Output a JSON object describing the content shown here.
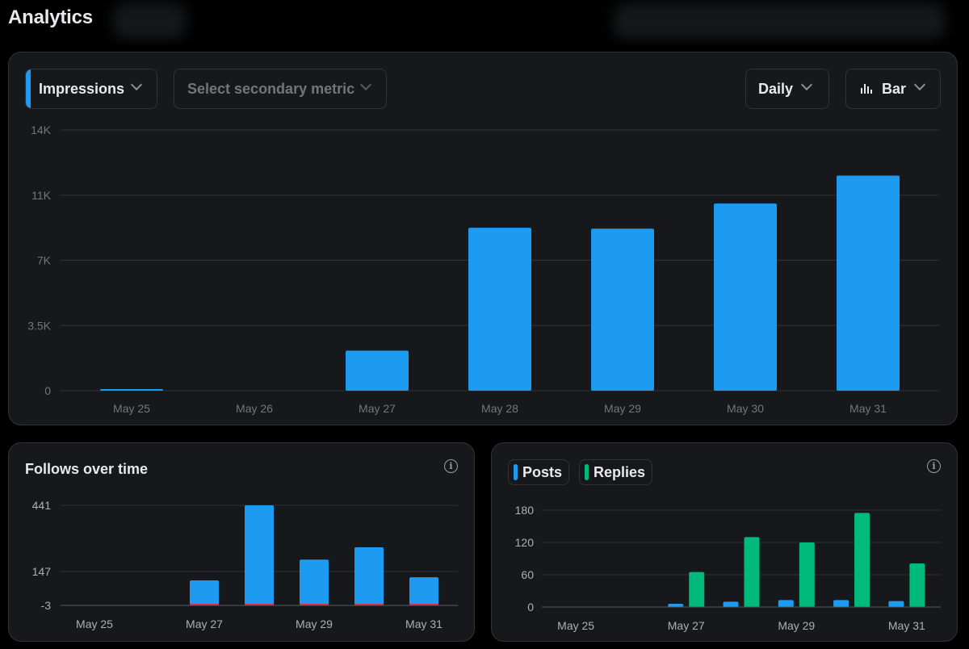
{
  "page": {
    "title": "Analytics"
  },
  "colors": {
    "accent": "#1d9bf0",
    "green": "#00ba7c",
    "red": "#f4212e",
    "grid": "#2f3336",
    "tick": "#71767b"
  },
  "main_chart": {
    "primary_metric": "Impressions",
    "secondary_metric_placeholder": "Select secondary metric",
    "interval": "Daily",
    "chart_type_label": "Bar",
    "chart_type_icon": "bar-chart-icon"
  },
  "follows_panel": {
    "title": "Follows over time",
    "info_icon": "info-icon"
  },
  "posts_panel": {
    "legend": [
      {
        "label": "Posts",
        "color": "#1d9bf0"
      },
      {
        "label": "Replies",
        "color": "#00ba7c"
      }
    ],
    "info_icon": "info-icon"
  },
  "chart_data": [
    {
      "type": "bar",
      "categories": [
        "May 25",
        "May 26",
        "May 27",
        "May 28",
        "May 29",
        "May 30",
        "May 31"
      ],
      "values": [
        30,
        0,
        2150,
        8750,
        8700,
        10050,
        11550
      ],
      "yticks": [
        0,
        3500,
        7000,
        10500,
        14000
      ],
      "ytick_labels": [
        "0",
        "3.5K",
        "7K",
        "11K",
        "14K"
      ],
      "ylim": [
        0,
        14000
      ],
      "title": "",
      "xlabel": "",
      "ylabel": "",
      "grid": true,
      "color": "#1d9bf0"
    },
    {
      "type": "bar",
      "title": "Follows over time",
      "categories": [
        "May 25",
        "May 26",
        "May 27",
        "May 28",
        "May 29",
        "May 30",
        "May 31"
      ],
      "xtick_labels": [
        "May 25",
        "May 27",
        "May 29",
        "May 31"
      ],
      "series": [
        {
          "values": [
            0,
            0,
            108,
            441,
            200,
            255,
            122
          ],
          "color": "#1d9bf0"
        },
        {
          "values": [
            0,
            0,
            -3,
            -3,
            -3,
            -3,
            -3
          ],
          "color": "#f4212e"
        }
      ],
      "yticks": [
        -3,
        147,
        441
      ],
      "ytick_labels": [
        "-3",
        "147",
        "441"
      ],
      "ylim": [
        -3,
        441
      ],
      "grid": true
    },
    {
      "type": "bar",
      "categories": [
        "May 25",
        "May 26",
        "May 27",
        "May 28",
        "May 29",
        "May 30",
        "May 31"
      ],
      "xtick_labels": [
        "May 25",
        "May 27",
        "May 29",
        "May 31"
      ],
      "series": [
        {
          "name": "Posts",
          "values": [
            0,
            0,
            6,
            10,
            13,
            13,
            11
          ],
          "color": "#1d9bf0"
        },
        {
          "name": "Replies",
          "values": [
            0,
            0,
            65,
            130,
            120,
            175,
            81
          ],
          "color": "#00ba7c"
        }
      ],
      "yticks": [
        0,
        60,
        120,
        180
      ],
      "ytick_labels": [
        "0",
        "60",
        "120",
        "180"
      ],
      "ylim": [
        0,
        180
      ],
      "legend": "top-left",
      "grid": true
    }
  ]
}
